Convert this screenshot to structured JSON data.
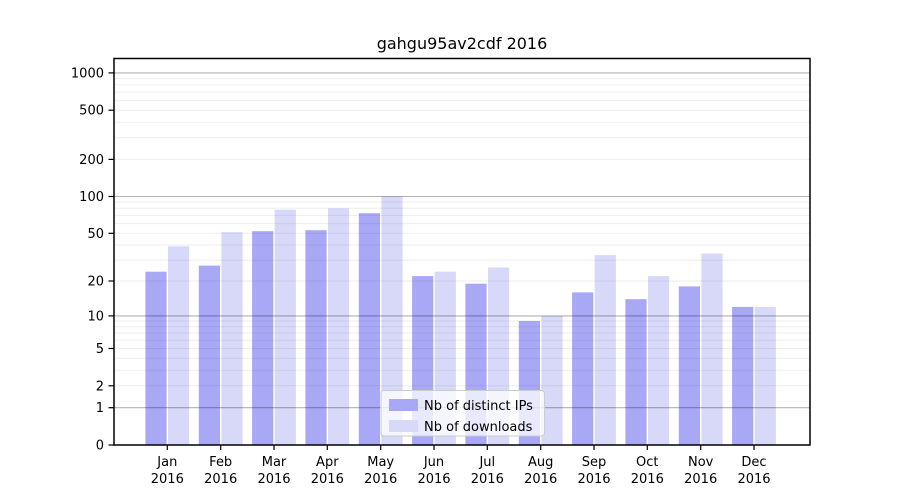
{
  "figure": {
    "background": "#ffffff"
  },
  "chart_data": {
    "type": "bar",
    "title": "gahgu95av2cdf 2016",
    "categories": [
      "Jan",
      "Feb",
      "Mar",
      "Apr",
      "May",
      "Jun",
      "Jul",
      "Aug",
      "Sep",
      "Oct",
      "Nov",
      "Dec"
    ],
    "x_year_label": "2016",
    "series": [
      {
        "key": "distinct-ips",
        "name": "Nb of distinct IPs",
        "color": "#a8a8f7",
        "values": [
          24,
          27,
          52,
          53,
          73,
          22,
          19,
          9,
          16,
          14,
          18,
          12
        ]
      },
      {
        "key": "downloads",
        "name": "Nb of downloads",
        "color": "#d8d8f8",
        "values": [
          39,
          51,
          78,
          80,
          100,
          24,
          26,
          10,
          33,
          22,
          34,
          12
        ]
      }
    ],
    "y_axis": {
      "scale": "log1p",
      "ticks": [
        0,
        1,
        2,
        5,
        10,
        20,
        50,
        100,
        200,
        500,
        1000
      ],
      "major_gridlines": [
        1,
        10,
        100,
        1000
      ],
      "range": [
        0,
        1300
      ]
    },
    "legend": {
      "position": "bottom-center-inside"
    },
    "grid": true
  },
  "colors": {
    "bar_distinct_ips": "#a8a8f7",
    "bar_downloads": "#d8d8f8",
    "major_grid": "rgba(0,0,0,0.30)",
    "minor_grid": "rgba(0,0,0,0.065)",
    "axis": "#000000",
    "legend_border": "#cccccc",
    "legend_background": "#ffffff"
  }
}
